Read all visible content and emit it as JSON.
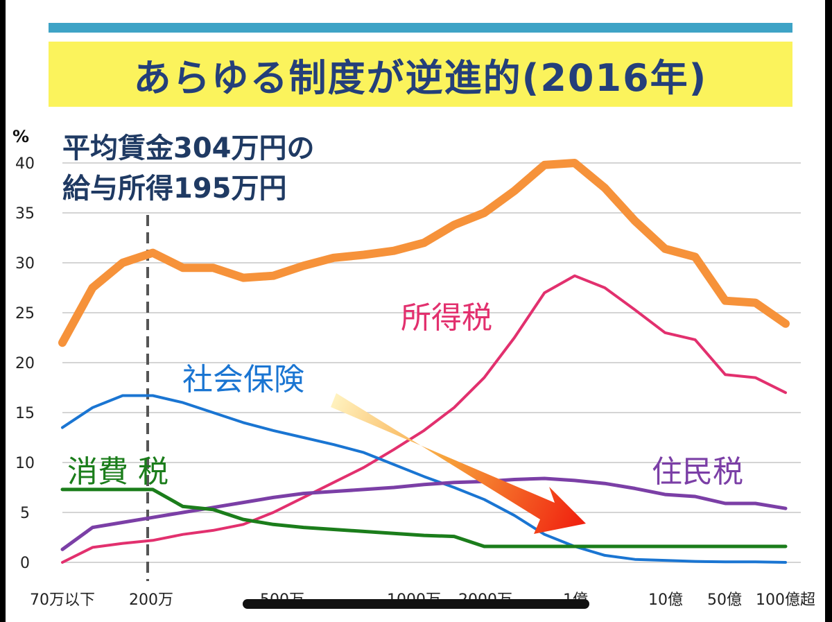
{
  "title": "あらゆる制度が逆進的(2016年)",
  "chart_data": {
    "type": "line",
    "y_unit": "%",
    "ylim": [
      0,
      40
    ],
    "yticks": [
      "40",
      "35",
      "30",
      "25",
      "20",
      "15",
      "10",
      "5",
      "0"
    ],
    "xticks": [
      "70万以下",
      "200万",
      "500万",
      "1000万",
      "2000万",
      "1億",
      "10億",
      "50億",
      "100億超"
    ],
    "annotation": [
      "平均賃金304万円の",
      "給与所得195万円"
    ],
    "reference_line_x": "200万",
    "grid": true,
    "legend": "inline labels",
    "series": [
      {
        "name": "",
        "color": "#f6923a",
        "values": [
          22,
          27.5,
          30,
          31,
          29.5,
          29.5,
          28.5,
          28.7,
          29.7,
          30.5,
          30.8,
          31.2,
          32,
          33.8,
          35,
          37.2,
          39.8,
          40,
          37.5,
          34.2,
          31.4,
          30.6,
          26.2,
          26,
          23.9
        ]
      },
      {
        "name": "所得税",
        "color": "#e2306e",
        "values": [
          0,
          1.5,
          1.9,
          2.2,
          2.8,
          3.2,
          3.8,
          5,
          6.5,
          8,
          9.5,
          11.3,
          13.2,
          15.5,
          18.5,
          22.5,
          27,
          28.7,
          27.5,
          25.3,
          23,
          22.3,
          18.8,
          18.5,
          17
        ]
      },
      {
        "name": "社会保険",
        "color": "#1a75d2",
        "values": [
          13.5,
          15.5,
          16.7,
          16.7,
          16,
          15,
          14,
          13.2,
          12.5,
          11.8,
          11,
          9.8,
          8.6,
          7.5,
          6.3,
          4.7,
          2.8,
          1.6,
          0.7,
          0.3,
          0.2,
          0.1,
          0.05,
          0.05,
          0
        ]
      },
      {
        "name": "住民税",
        "color": "#7b3fa6",
        "values": [
          1.3,
          3.5,
          4,
          4.5,
          5,
          5.5,
          6,
          6.5,
          6.9,
          7.1,
          7.3,
          7.5,
          7.8,
          8,
          8.1,
          8.3,
          8.4,
          8.2,
          7.9,
          7.4,
          6.8,
          6.6,
          5.9,
          5.9,
          5.4
        ]
      },
      {
        "name": "消費 税",
        "color": "#1b7d1b",
        "values": [
          7.3,
          7.3,
          7.3,
          7.3,
          5.6,
          5.3,
          4.3,
          3.8,
          3.5,
          3.3,
          3.1,
          2.9,
          2.7,
          2.6,
          1.6,
          1.6,
          1.6,
          1.6,
          1.6,
          1.6,
          1.6,
          1.6,
          1.6,
          1.6,
          1.6
        ]
      }
    ]
  }
}
